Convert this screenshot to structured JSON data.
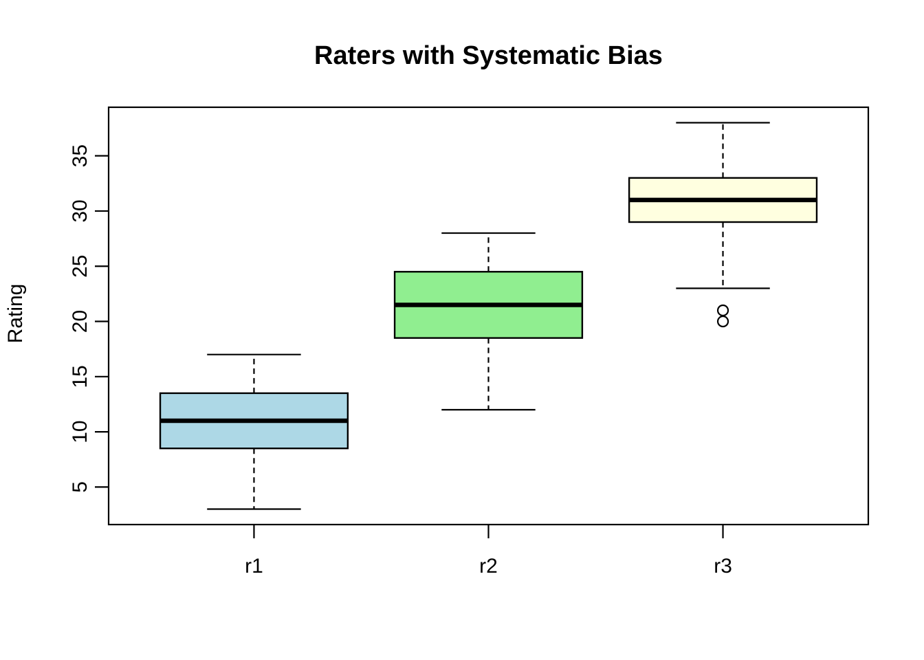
{
  "figure": {
    "background_color": "#FFFFFF",
    "foreground_color": "#000000"
  },
  "chart_data": {
    "type": "boxplot",
    "title": "Raters with Systematic Bias",
    "xlabel": "",
    "ylabel": "Rating",
    "categories": [
      "r1",
      "r2",
      "r3"
    ],
    "yticks": [
      5,
      10,
      15,
      20,
      25,
      30,
      35
    ],
    "ylim": [
      1.6,
      39.4
    ],
    "xlim": [
      0.38,
      3.62
    ],
    "grid": false,
    "legend": null,
    "box_width": 0.8,
    "cap_width": 0.4,
    "series": [
      {
        "name": "r1",
        "x": 1,
        "whisker_low": 3,
        "q1": 8.5,
        "median": 11,
        "q3": 13.5,
        "whisker_high": 17,
        "outliers": [],
        "fill": "#ADD8E6"
      },
      {
        "name": "r2",
        "x": 2,
        "whisker_low": 12,
        "q1": 18.5,
        "median": 21.5,
        "q3": 24.5,
        "whisker_high": 28,
        "outliers": [],
        "fill": "#90EE90"
      },
      {
        "name": "r3",
        "x": 3,
        "whisker_low": 23,
        "q1": 29,
        "median": 31,
        "q3": 33,
        "whisker_high": 38,
        "outliers": [
          21,
          20
        ],
        "fill": "#FFFFE0"
      }
    ],
    "style": {
      "line_color": "#000000",
      "whisker_linetype": "dashed",
      "outlier_marker": "open-circle"
    }
  }
}
